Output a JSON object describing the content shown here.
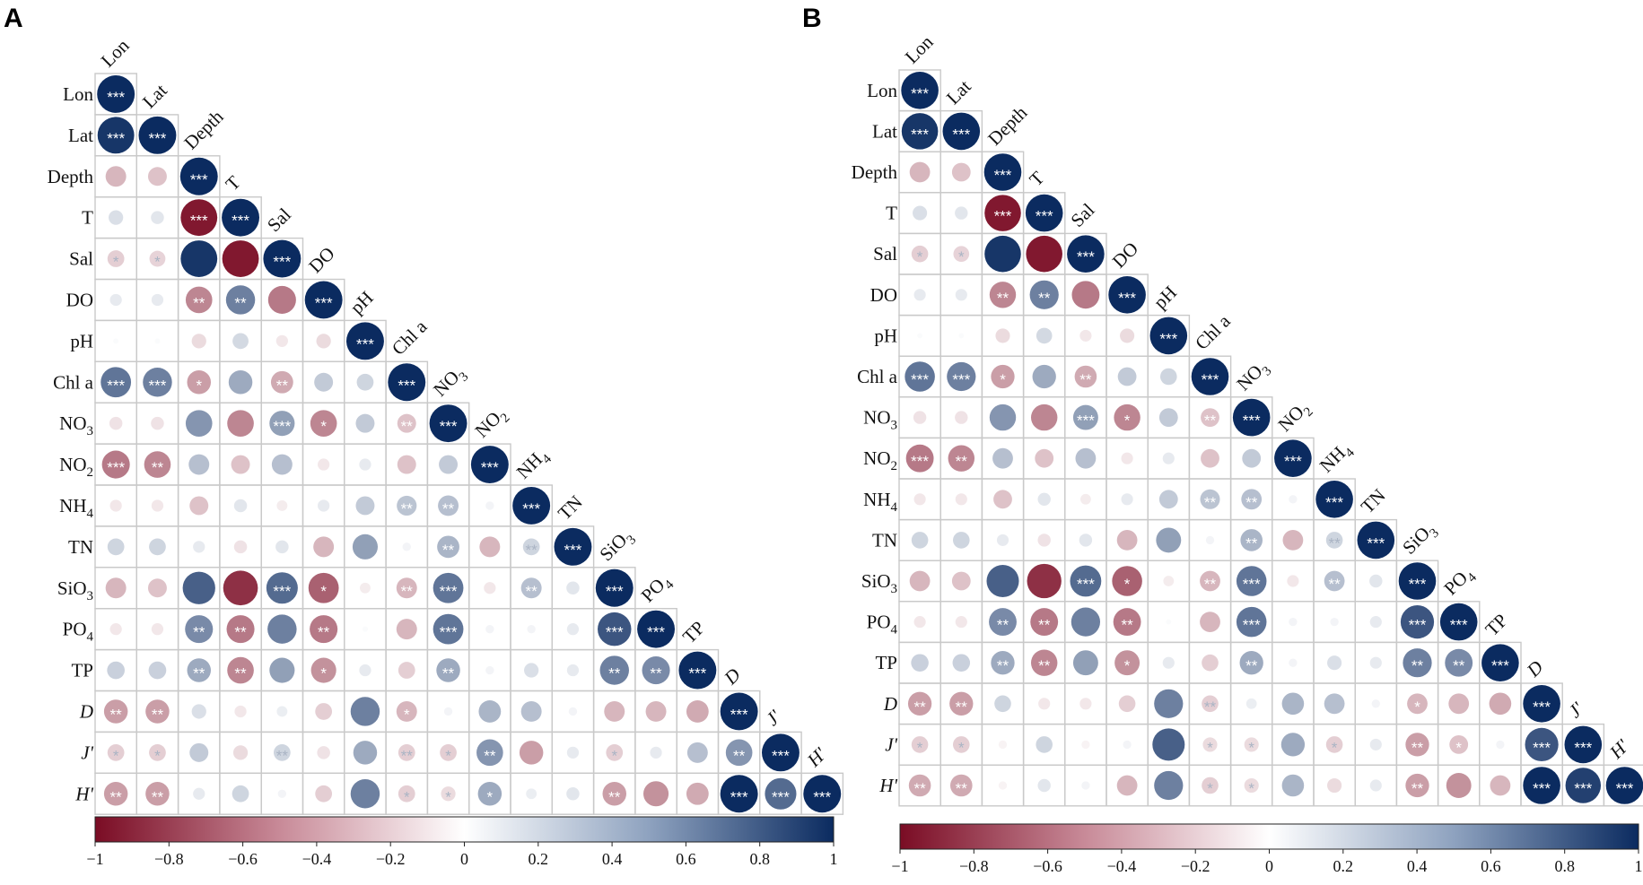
{
  "chart_data": [
    {
      "type": "heatmap",
      "subtype": "correlation-lower-triangle",
      "panel": "A",
      "variables": [
        {
          "main": "Lon",
          "sub": ""
        },
        {
          "main": "Lat",
          "sub": ""
        },
        {
          "main": "Depth",
          "sub": ""
        },
        {
          "main": "T",
          "sub": ""
        },
        {
          "main": "Sal",
          "sub": ""
        },
        {
          "main": "DO",
          "sub": ""
        },
        {
          "main": "pH",
          "sub": ""
        },
        {
          "main": "Chl a",
          "sub": ""
        },
        {
          "main": "NO",
          "sub": "3"
        },
        {
          "main": "NO",
          "sub": "2"
        },
        {
          "main": "NH",
          "sub": "4"
        },
        {
          "main": "TN",
          "sub": ""
        },
        {
          "main": "SiO",
          "sub": "3"
        },
        {
          "main": "PO",
          "sub": "4"
        },
        {
          "main": "TP",
          "sub": ""
        },
        {
          "main": "D",
          "sub": "",
          "italic": true
        },
        {
          "main": "J'",
          "sub": "",
          "italic": true
        },
        {
          "main": "H'",
          "sub": "",
          "italic": true
        }
      ],
      "matrix": [
        [
          1
        ],
        [
          0.95,
          1
        ],
        [
          -0.3,
          -0.25,
          1
        ],
        [
          0.15,
          0.12,
          -0.95,
          1
        ],
        [
          -0.2,
          -0.18,
          0.95,
          -0.95,
          1
        ],
        [
          0.1,
          0.1,
          -0.5,
          0.6,
          -0.55,
          1
        ],
        [
          0.02,
          0.02,
          -0.15,
          0.18,
          -0.1,
          -0.15,
          1
        ],
        [
          0.65,
          0.6,
          -0.4,
          0.4,
          -0.35,
          0.25,
          0.2,
          1
        ],
        [
          -0.12,
          -0.12,
          0.5,
          -0.5,
          0.45,
          -0.5,
          0.25,
          -0.25,
          1
        ],
        [
          -0.55,
          -0.5,
          0.3,
          -0.25,
          0.3,
          -0.1,
          0.1,
          -0.25,
          0.25,
          1
        ],
        [
          -0.1,
          -0.1,
          -0.25,
          0.12,
          -0.08,
          0.1,
          0.25,
          0.28,
          0.3,
          0.05,
          1
        ],
        [
          0.2,
          0.2,
          0.1,
          -0.12,
          0.12,
          -0.3,
          0.45,
          0.05,
          0.35,
          -0.3,
          0.2,
          1
        ],
        [
          -0.3,
          -0.25,
          0.75,
          -0.85,
          0.7,
          -0.65,
          -0.08,
          -0.3,
          0.65,
          -0.1,
          0.3,
          0.12,
          1
        ],
        [
          -0.1,
          -0.1,
          0.55,
          -0.55,
          0.6,
          -0.55,
          0.02,
          -0.3,
          0.65,
          0.05,
          0.05,
          0.1,
          0.8,
          1
        ],
        [
          0.22,
          0.22,
          0.4,
          -0.5,
          0.45,
          -0.45,
          0.1,
          -0.2,
          0.4,
          0.05,
          0.15,
          0.1,
          0.6,
          0.55,
          1
        ],
        [
          -0.4,
          -0.4,
          0.15,
          -0.1,
          0.08,
          -0.2,
          0.6,
          -0.3,
          0.05,
          0.35,
          0.3,
          0.05,
          -0.3,
          -0.3,
          -0.35,
          1
        ],
        [
          -0.2,
          -0.2,
          0.25,
          -0.15,
          0.2,
          -0.12,
          0.4,
          -0.2,
          -0.2,
          0.5,
          -0.4,
          0.1,
          -0.2,
          0.1,
          0.3,
          0.5,
          1
        ],
        [
          -0.4,
          -0.4,
          0.1,
          0.2,
          0.05,
          -0.2,
          0.6,
          -0.2,
          -0.15,
          0.4,
          0.08,
          0.12,
          -0.4,
          -0.45,
          -0.35,
          1,
          0.7,
          1
        ]
      ],
      "significance": [
        [
          "***"
        ],
        [
          "***",
          "***"
        ],
        [
          "",
          "",
          "***"
        ],
        [
          "",
          "",
          "***",
          "***"
        ],
        [
          "*",
          "*",
          "",
          "",
          "***"
        ],
        [
          "",
          "",
          "**",
          "**",
          "",
          "***"
        ],
        [
          "",
          "",
          "",
          "",
          "",
          "",
          "***"
        ],
        [
          "***",
          "***",
          "*",
          "",
          "**",
          "",
          "",
          "***"
        ],
        [
          "",
          "",
          "",
          "",
          "***",
          "*",
          "",
          "**",
          "***"
        ],
        [
          "***",
          "**",
          "",
          "",
          "",
          "",
          "",
          "",
          "",
          "***"
        ],
        [
          "",
          "",
          "",
          "",
          "",
          "",
          "",
          "**",
          "**",
          "",
          "***"
        ],
        [
          "",
          "",
          "",
          "",
          "",
          "",
          "",
          "",
          "**",
          "",
          "**",
          "***"
        ],
        [
          "",
          "",
          "",
          "",
          "***",
          "*",
          "",
          "**",
          "***",
          "",
          "**",
          "",
          "***"
        ],
        [
          "",
          "",
          "**",
          "**",
          "",
          "**",
          "",
          "",
          "***",
          "",
          "",
          "",
          "***",
          "***"
        ],
        [
          "",
          "",
          "**",
          "**",
          "",
          "*",
          "",
          "",
          "**",
          "",
          "",
          "",
          "**",
          "**",
          "***"
        ],
        [
          "**",
          "**",
          "",
          "",
          "",
          "",
          "",
          "*",
          "",
          "",
          "",
          "",
          "",
          "",
          "",
          "***"
        ],
        [
          "*",
          "*",
          "",
          "",
          "**",
          "",
          "",
          "**",
          "*",
          "**",
          "",
          "",
          "*",
          "",
          "",
          "**",
          "***"
        ],
        [
          "**",
          "**",
          "",
          "",
          "",
          "",
          "",
          "*",
          "*",
          "*",
          "",
          "",
          "**",
          "",
          "",
          "***",
          "***",
          "***"
        ]
      ],
      "colorbar": {
        "range": [
          -1,
          1
        ],
        "ticks": [
          "−1",
          "−0.8",
          "−0.6",
          "−0.4",
          "−0.2",
          "0",
          "0.2",
          "0.4",
          "0.6",
          "0.8",
          "1"
        ],
        "colors": [
          "#7a0c24",
          "#ffffff",
          "#0b2b60"
        ]
      }
    },
    {
      "type": "heatmap",
      "subtype": "correlation-lower-triangle",
      "panel": "B",
      "variables": [
        {
          "main": "Lon",
          "sub": ""
        },
        {
          "main": "Lat",
          "sub": ""
        },
        {
          "main": "Depth",
          "sub": ""
        },
        {
          "main": "T",
          "sub": ""
        },
        {
          "main": "Sal",
          "sub": ""
        },
        {
          "main": "DO",
          "sub": ""
        },
        {
          "main": "pH",
          "sub": ""
        },
        {
          "main": "Chl a",
          "sub": ""
        },
        {
          "main": "NO",
          "sub": "3"
        },
        {
          "main": "NO",
          "sub": "2"
        },
        {
          "main": "NH",
          "sub": "4"
        },
        {
          "main": "TN",
          "sub": ""
        },
        {
          "main": "SiO",
          "sub": "3"
        },
        {
          "main": "PO",
          "sub": "4"
        },
        {
          "main": "TP",
          "sub": ""
        },
        {
          "main": "D",
          "sub": "",
          "italic": true
        },
        {
          "main": "J'",
          "sub": "",
          "italic": true
        },
        {
          "main": "H'",
          "sub": "",
          "italic": true
        }
      ],
      "matrix": [
        [
          1
        ],
        [
          0.95,
          1
        ],
        [
          -0.3,
          -0.25,
          1
        ],
        [
          0.15,
          0.12,
          -0.95,
          1
        ],
        [
          -0.2,
          -0.18,
          0.95,
          -0.95,
          1
        ],
        [
          0.1,
          0.1,
          -0.5,
          0.6,
          -0.55,
          1
        ],
        [
          0.02,
          0.02,
          -0.15,
          0.18,
          -0.1,
          -0.15,
          1
        ],
        [
          0.65,
          0.6,
          -0.4,
          0.4,
          -0.35,
          0.25,
          0.2,
          1
        ],
        [
          -0.12,
          -0.12,
          0.5,
          -0.5,
          0.45,
          -0.5,
          0.25,
          -0.25,
          1
        ],
        [
          -0.55,
          -0.5,
          0.3,
          -0.25,
          0.3,
          -0.1,
          0.1,
          -0.25,
          0.25,
          1
        ],
        [
          -0.1,
          -0.1,
          -0.25,
          0.12,
          -0.08,
          0.1,
          0.25,
          0.28,
          0.3,
          0.05,
          1
        ],
        [
          0.2,
          0.2,
          0.1,
          -0.12,
          0.12,
          -0.3,
          0.45,
          0.05,
          0.35,
          -0.3,
          0.2,
          1
        ],
        [
          -0.3,
          -0.25,
          0.75,
          -0.85,
          0.7,
          -0.65,
          -0.08,
          -0.3,
          0.65,
          -0.1,
          0.3,
          0.12,
          1
        ],
        [
          -0.1,
          -0.1,
          0.55,
          -0.55,
          0.6,
          -0.55,
          0.02,
          -0.3,
          0.65,
          0.05,
          0.05,
          0.1,
          0.8,
          1
        ],
        [
          0.22,
          0.22,
          0.4,
          -0.5,
          0.45,
          -0.45,
          0.1,
          -0.2,
          0.4,
          0.05,
          0.15,
          0.1,
          0.6,
          0.55,
          1
        ],
        [
          -0.4,
          -0.4,
          0.2,
          -0.1,
          -0.1,
          -0.2,
          0.6,
          -0.2,
          0.08,
          0.35,
          0.3,
          0.05,
          -0.3,
          -0.3,
          -0.35,
          1
        ],
        [
          -0.2,
          -0.2,
          -0.05,
          0.2,
          -0.05,
          0.05,
          0.75,
          -0.15,
          -0.15,
          0.4,
          -0.2,
          0.1,
          -0.4,
          -0.25,
          0.05,
          0.8,
          1
        ],
        [
          -0.35,
          -0.35,
          -0.05,
          0.12,
          0.05,
          -0.3,
          0.6,
          -0.2,
          -0.15,
          0.35,
          -0.15,
          0.1,
          -0.4,
          -0.45,
          -0.3,
          1,
          0.9,
          1
        ]
      ],
      "significance": [
        [
          "***"
        ],
        [
          "***",
          "***"
        ],
        [
          "",
          "",
          "***"
        ],
        [
          "",
          "",
          "***",
          "***"
        ],
        [
          "*",
          "*",
          "",
          "",
          "***"
        ],
        [
          "",
          "",
          "**",
          "**",
          "",
          "***"
        ],
        [
          "",
          "",
          "",
          "",
          "",
          "",
          "***"
        ],
        [
          "***",
          "***",
          "*",
          "",
          "**",
          "",
          "",
          "***"
        ],
        [
          "",
          "",
          "",
          "",
          "***",
          "*",
          "",
          "**",
          "***"
        ],
        [
          "***",
          "**",
          "",
          "",
          "",
          "",
          "",
          "",
          "",
          "***"
        ],
        [
          "",
          "",
          "",
          "",
          "",
          "",
          "",
          "**",
          "**",
          "",
          "***"
        ],
        [
          "",
          "",
          "",
          "",
          "",
          "",
          "",
          "",
          "**",
          "",
          "**",
          "***"
        ],
        [
          "",
          "",
          "",
          "",
          "***",
          "*",
          "",
          "**",
          "***",
          "",
          "**",
          "",
          "***"
        ],
        [
          "",
          "",
          "**",
          "**",
          "",
          "**",
          "",
          "",
          "***",
          "",
          "",
          "",
          "***",
          "***"
        ],
        [
          "",
          "",
          "**",
          "**",
          "",
          "*",
          "",
          "",
          "**",
          "",
          "",
          "",
          "**",
          "**",
          "***"
        ],
        [
          "**",
          "**",
          "",
          "",
          "",
          "",
          "",
          "**",
          "",
          "",
          "",
          "",
          "*",
          "",
          "",
          "***"
        ],
        [
          "*",
          "*",
          "",
          "",
          "",
          "",
          "",
          "*",
          "*",
          "",
          "*",
          "",
          "**",
          "*",
          "",
          "***",
          "***"
        ],
        [
          "**",
          "**",
          "",
          "",
          "",
          "",
          "",
          "*",
          "*",
          "",
          "",
          "",
          "**",
          "",
          "",
          "***",
          "***",
          "***"
        ]
      ],
      "colorbar": {
        "range": [
          -1,
          1
        ],
        "ticks": [
          "−1",
          "−0.8",
          "−0.6",
          "−0.4",
          "−0.2",
          "0",
          "0.2",
          "0.4",
          "0.6",
          "0.8",
          "1"
        ],
        "colors": [
          "#7a0c24",
          "#ffffff",
          "#0b2b60"
        ]
      }
    }
  ]
}
